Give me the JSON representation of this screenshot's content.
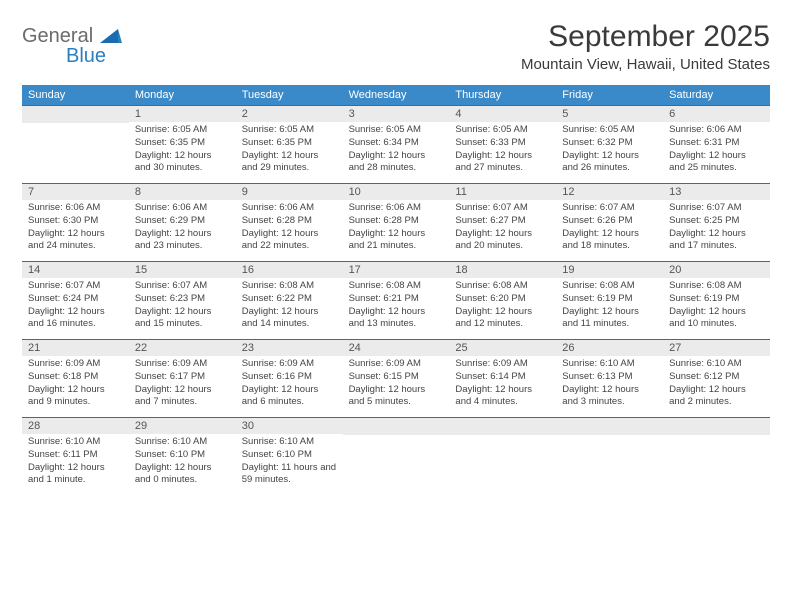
{
  "brand": {
    "word1": "General",
    "word2": "Blue",
    "color_general": "#6b6b6b",
    "color_blue": "#2a7fbf",
    "shape_color": "#1a6bb0"
  },
  "title": "September 2025",
  "location": "Mountain View, Hawaii, United States",
  "colors": {
    "header_bg": "#3a8ac9",
    "header_text": "#ffffff",
    "daynum_bg": "#ebebeb",
    "daynum_border": "#2f6fa6",
    "page_bg": "#ffffff",
    "text": "#444444"
  },
  "weekdays": [
    "Sunday",
    "Monday",
    "Tuesday",
    "Wednesday",
    "Thursday",
    "Friday",
    "Saturday"
  ],
  "weeks": [
    [
      {
        "n": "",
        "sr": "",
        "ss": "",
        "dl": ""
      },
      {
        "n": "1",
        "sr": "Sunrise: 6:05 AM",
        "ss": "Sunset: 6:35 PM",
        "dl": "Daylight: 12 hours and 30 minutes."
      },
      {
        "n": "2",
        "sr": "Sunrise: 6:05 AM",
        "ss": "Sunset: 6:35 PM",
        "dl": "Daylight: 12 hours and 29 minutes."
      },
      {
        "n": "3",
        "sr": "Sunrise: 6:05 AM",
        "ss": "Sunset: 6:34 PM",
        "dl": "Daylight: 12 hours and 28 minutes."
      },
      {
        "n": "4",
        "sr": "Sunrise: 6:05 AM",
        "ss": "Sunset: 6:33 PM",
        "dl": "Daylight: 12 hours and 27 minutes."
      },
      {
        "n": "5",
        "sr": "Sunrise: 6:05 AM",
        "ss": "Sunset: 6:32 PM",
        "dl": "Daylight: 12 hours and 26 minutes."
      },
      {
        "n": "6",
        "sr": "Sunrise: 6:06 AM",
        "ss": "Sunset: 6:31 PM",
        "dl": "Daylight: 12 hours and 25 minutes."
      }
    ],
    [
      {
        "n": "7",
        "sr": "Sunrise: 6:06 AM",
        "ss": "Sunset: 6:30 PM",
        "dl": "Daylight: 12 hours and 24 minutes."
      },
      {
        "n": "8",
        "sr": "Sunrise: 6:06 AM",
        "ss": "Sunset: 6:29 PM",
        "dl": "Daylight: 12 hours and 23 minutes."
      },
      {
        "n": "9",
        "sr": "Sunrise: 6:06 AM",
        "ss": "Sunset: 6:28 PM",
        "dl": "Daylight: 12 hours and 22 minutes."
      },
      {
        "n": "10",
        "sr": "Sunrise: 6:06 AM",
        "ss": "Sunset: 6:28 PM",
        "dl": "Daylight: 12 hours and 21 minutes."
      },
      {
        "n": "11",
        "sr": "Sunrise: 6:07 AM",
        "ss": "Sunset: 6:27 PM",
        "dl": "Daylight: 12 hours and 20 minutes."
      },
      {
        "n": "12",
        "sr": "Sunrise: 6:07 AM",
        "ss": "Sunset: 6:26 PM",
        "dl": "Daylight: 12 hours and 18 minutes."
      },
      {
        "n": "13",
        "sr": "Sunrise: 6:07 AM",
        "ss": "Sunset: 6:25 PM",
        "dl": "Daylight: 12 hours and 17 minutes."
      }
    ],
    [
      {
        "n": "14",
        "sr": "Sunrise: 6:07 AM",
        "ss": "Sunset: 6:24 PM",
        "dl": "Daylight: 12 hours and 16 minutes."
      },
      {
        "n": "15",
        "sr": "Sunrise: 6:07 AM",
        "ss": "Sunset: 6:23 PM",
        "dl": "Daylight: 12 hours and 15 minutes."
      },
      {
        "n": "16",
        "sr": "Sunrise: 6:08 AM",
        "ss": "Sunset: 6:22 PM",
        "dl": "Daylight: 12 hours and 14 minutes."
      },
      {
        "n": "17",
        "sr": "Sunrise: 6:08 AM",
        "ss": "Sunset: 6:21 PM",
        "dl": "Daylight: 12 hours and 13 minutes."
      },
      {
        "n": "18",
        "sr": "Sunrise: 6:08 AM",
        "ss": "Sunset: 6:20 PM",
        "dl": "Daylight: 12 hours and 12 minutes."
      },
      {
        "n": "19",
        "sr": "Sunrise: 6:08 AM",
        "ss": "Sunset: 6:19 PM",
        "dl": "Daylight: 12 hours and 11 minutes."
      },
      {
        "n": "20",
        "sr": "Sunrise: 6:08 AM",
        "ss": "Sunset: 6:19 PM",
        "dl": "Daylight: 12 hours and 10 minutes."
      }
    ],
    [
      {
        "n": "21",
        "sr": "Sunrise: 6:09 AM",
        "ss": "Sunset: 6:18 PM",
        "dl": "Daylight: 12 hours and 9 minutes."
      },
      {
        "n": "22",
        "sr": "Sunrise: 6:09 AM",
        "ss": "Sunset: 6:17 PM",
        "dl": "Daylight: 12 hours and 7 minutes."
      },
      {
        "n": "23",
        "sr": "Sunrise: 6:09 AM",
        "ss": "Sunset: 6:16 PM",
        "dl": "Daylight: 12 hours and 6 minutes."
      },
      {
        "n": "24",
        "sr": "Sunrise: 6:09 AM",
        "ss": "Sunset: 6:15 PM",
        "dl": "Daylight: 12 hours and 5 minutes."
      },
      {
        "n": "25",
        "sr": "Sunrise: 6:09 AM",
        "ss": "Sunset: 6:14 PM",
        "dl": "Daylight: 12 hours and 4 minutes."
      },
      {
        "n": "26",
        "sr": "Sunrise: 6:10 AM",
        "ss": "Sunset: 6:13 PM",
        "dl": "Daylight: 12 hours and 3 minutes."
      },
      {
        "n": "27",
        "sr": "Sunrise: 6:10 AM",
        "ss": "Sunset: 6:12 PM",
        "dl": "Daylight: 12 hours and 2 minutes."
      }
    ],
    [
      {
        "n": "28",
        "sr": "Sunrise: 6:10 AM",
        "ss": "Sunset: 6:11 PM",
        "dl": "Daylight: 12 hours and 1 minute."
      },
      {
        "n": "29",
        "sr": "Sunrise: 6:10 AM",
        "ss": "Sunset: 6:10 PM",
        "dl": "Daylight: 12 hours and 0 minutes."
      },
      {
        "n": "30",
        "sr": "Sunrise: 6:10 AM",
        "ss": "Sunset: 6:10 PM",
        "dl": "Daylight: 11 hours and 59 minutes."
      },
      {
        "n": "",
        "sr": "",
        "ss": "",
        "dl": ""
      },
      {
        "n": "",
        "sr": "",
        "ss": "",
        "dl": ""
      },
      {
        "n": "",
        "sr": "",
        "ss": "",
        "dl": ""
      },
      {
        "n": "",
        "sr": "",
        "ss": "",
        "dl": ""
      }
    ]
  ]
}
